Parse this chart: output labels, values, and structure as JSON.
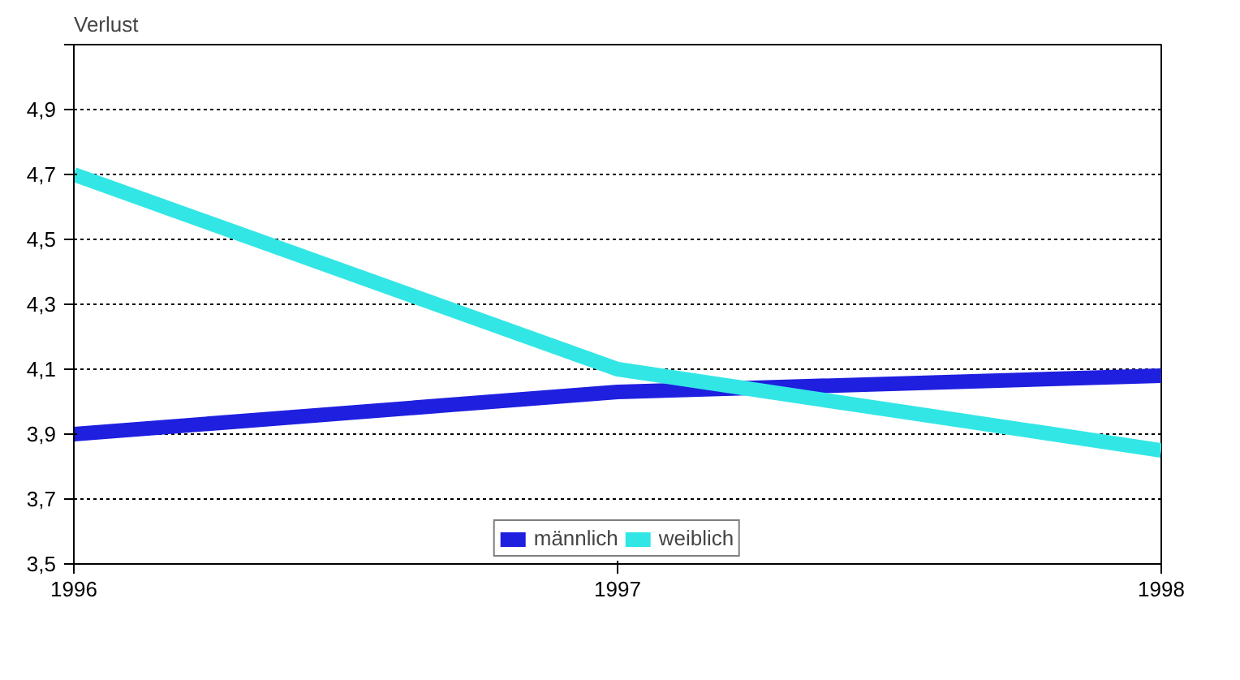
{
  "chart_data": {
    "type": "line",
    "ylabel": "Verlust",
    "x": [
      1996,
      1997,
      1998
    ],
    "series": [
      {
        "name": "männlich",
        "color": "#1f1fe0",
        "values": [
          3.9,
          4.03,
          4.08
        ]
      },
      {
        "name": "weiblich",
        "color": "#33e6e6",
        "values": [
          4.7,
          4.1,
          3.85
        ]
      }
    ],
    "xlim": [
      1996,
      1998
    ],
    "xticks": [
      1996,
      1997,
      1998
    ],
    "ylim": [
      3.5,
      5.1
    ],
    "yticks": [
      {
        "value": 3.5,
        "label": "3,5"
      },
      {
        "value": 3.7,
        "label": "3,7"
      },
      {
        "value": 3.9,
        "label": "3,9"
      },
      {
        "value": 4.1,
        "label": "4,1"
      },
      {
        "value": 4.3,
        "label": "4,3"
      },
      {
        "value": 4.5,
        "label": "4,5"
      },
      {
        "value": 4.7,
        "label": "4,7"
      },
      {
        "value": 4.9,
        "label": "4,9"
      },
      {
        "value": 5.1,
        "label": null
      }
    ],
    "grid": "y",
    "legend": "bottom",
    "marker": "none",
    "line_style": "solid"
  }
}
